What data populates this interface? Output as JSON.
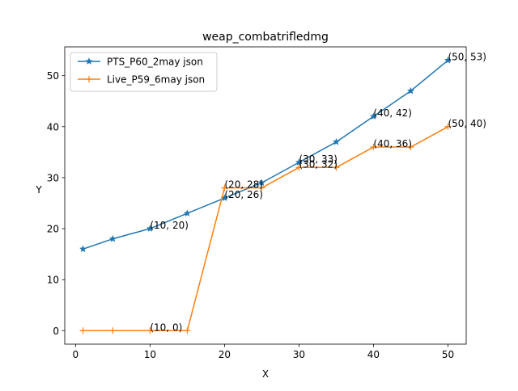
{
  "chart_data": {
    "type": "line",
    "title": "weap_combatrifledmg",
    "xlabel": "X",
    "ylabel": "Y",
    "xlim": [
      -1.45,
      52.45
    ],
    "ylim": [
      -2.65,
      55.65
    ],
    "xticks": [
      0,
      10,
      20,
      30,
      40,
      50
    ],
    "yticks": [
      0,
      10,
      20,
      30,
      40,
      50
    ],
    "grid": false,
    "legend_position": "top-left",
    "series": [
      {
        "name": "PTS_P60_2may json",
        "color": "#1f77b4",
        "marker": "star",
        "x": [
          1,
          5,
          10,
          15,
          20,
          25,
          30,
          35,
          40,
          45,
          50
        ],
        "y": [
          16,
          18,
          20,
          23,
          26,
          29,
          33,
          37,
          42,
          47,
          53
        ]
      },
      {
        "name": "Live_P59_6may json",
        "color": "#ff7f0e",
        "marker": "plus",
        "x": [
          1,
          5,
          10,
          15,
          20,
          25,
          30,
          35,
          40,
          45,
          50
        ],
        "y": [
          0,
          0,
          0,
          0,
          28,
          28,
          32,
          32,
          36,
          36,
          40
        ]
      }
    ],
    "annotations": [
      {
        "text": "(10, 20)",
        "x": 10,
        "y": 20
      },
      {
        "text": "(20, 26)",
        "x": 20,
        "y": 26
      },
      {
        "text": "(30, 33)",
        "x": 30,
        "y": 33
      },
      {
        "text": "(40, 42)",
        "x": 40,
        "y": 42
      },
      {
        "text": "(50, 53)",
        "x": 50,
        "y": 53
      },
      {
        "text": "(10, 0)",
        "x": 10,
        "y": 0
      },
      {
        "text": "(20, 28)",
        "x": 20,
        "y": 28
      },
      {
        "text": "(30, 32)",
        "x": 30,
        "y": 32
      },
      {
        "text": "(40, 36)",
        "x": 40,
        "y": 36
      },
      {
        "text": "(50, 40)",
        "x": 50,
        "y": 40
      }
    ]
  }
}
